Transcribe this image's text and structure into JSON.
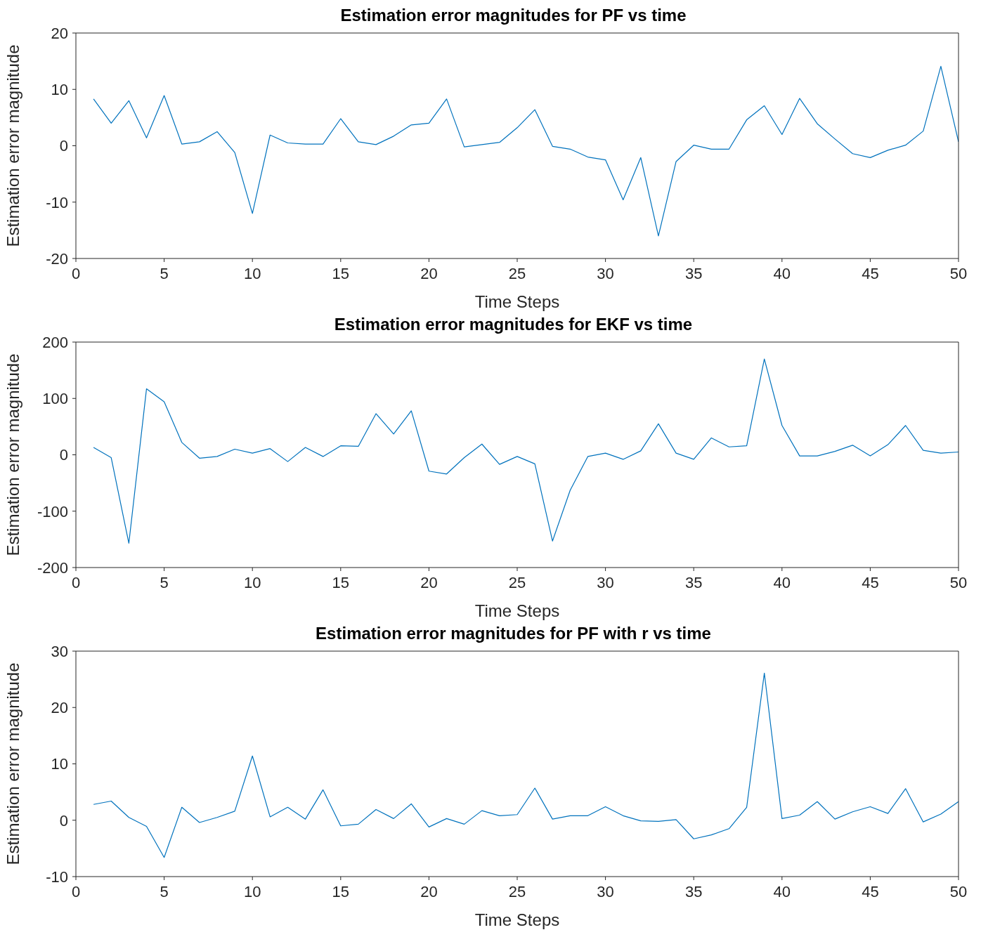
{
  "chart_data": [
    {
      "type": "line",
      "title": "Estimation error magnitudes for PF vs time",
      "xlabel": "Time Steps",
      "ylabel": "Estimation error magnitude",
      "x": [
        1,
        2,
        3,
        4,
        5,
        6,
        7,
        8,
        9,
        10,
        11,
        12,
        13,
        14,
        15,
        16,
        17,
        18,
        19,
        20,
        21,
        22,
        23,
        24,
        25,
        26,
        27,
        28,
        29,
        30,
        31,
        32,
        33,
        34,
        35,
        36,
        37,
        38,
        39,
        40,
        41,
        42,
        43,
        44,
        45,
        46,
        47,
        48,
        49,
        50
      ],
      "series": [
        {
          "color": "#0072bd",
          "values": [
            8.3,
            4.0,
            8.0,
            1.4,
            8.9,
            0.3,
            0.7,
            2.5,
            -1.2,
            -12.0,
            1.9,
            0.5,
            0.3,
            0.3,
            4.8,
            0.7,
            0.2,
            1.7,
            3.7,
            4.0,
            8.3,
            -0.2,
            0.2,
            0.6,
            3.2,
            6.4,
            -0.1,
            -0.6,
            -2.0,
            -2.5,
            -9.6,
            -2.1,
            -16.0,
            -2.8,
            0.1,
            -0.6,
            -0.6,
            4.6,
            7.1,
            2.0,
            8.4,
            3.9,
            1.2,
            -1.4,
            -2.1,
            -0.8,
            0.1,
            2.6,
            14.1,
            0.7
          ]
        }
      ],
      "xlim": [
        0,
        50
      ],
      "xticks": [
        0,
        5,
        10,
        15,
        20,
        25,
        30,
        35,
        40,
        45,
        50
      ],
      "ylim": [
        -20,
        20
      ],
      "yticks": [
        -20,
        -10,
        0,
        10,
        20
      ],
      "grid": false,
      "marker": "none",
      "line_style": "solid"
    },
    {
      "type": "line",
      "title": "Estimation error magnitudes for EKF vs time",
      "xlabel": "Time Steps",
      "ylabel": "Estimation error magnitude",
      "x": [
        1,
        2,
        3,
        4,
        5,
        6,
        7,
        8,
        9,
        10,
        11,
        12,
        13,
        14,
        15,
        16,
        17,
        18,
        19,
        20,
        21,
        22,
        23,
        24,
        25,
        26,
        27,
        28,
        29,
        30,
        31,
        32,
        33,
        34,
        35,
        36,
        37,
        38,
        39,
        40,
        41,
        42,
        43,
        44,
        45,
        46,
        47,
        48,
        49,
        50
      ],
      "series": [
        {
          "color": "#0072bd",
          "values": [
            13,
            -5,
            -157,
            117,
            94,
            22,
            -6,
            -3,
            10,
            3,
            11,
            -12,
            13,
            -3,
            16,
            15,
            73,
            37,
            78,
            -29,
            -34,
            -5,
            19,
            -17,
            -3,
            -16,
            -153,
            -63,
            -3,
            3,
            -8,
            7,
            55,
            3,
            -8,
            30,
            14,
            16,
            170,
            52,
            -2,
            -2,
            6,
            17,
            -2,
            18,
            52,
            8,
            3,
            5
          ]
        }
      ],
      "xlim": [
        0,
        50
      ],
      "xticks": [
        0,
        5,
        10,
        15,
        20,
        25,
        30,
        35,
        40,
        45,
        50
      ],
      "ylim": [
        -200,
        200
      ],
      "yticks": [
        -200,
        -100,
        0,
        100,
        200
      ],
      "grid": false,
      "marker": "none",
      "line_style": "solid"
    },
    {
      "type": "line",
      "title": "Estimation error magnitudes for PF with r vs time",
      "xlabel": "Time Steps",
      "ylabel": "Estimation error magnitude",
      "x": [
        1,
        2,
        3,
        4,
        5,
        6,
        7,
        8,
        9,
        10,
        11,
        12,
        13,
        14,
        15,
        16,
        17,
        18,
        19,
        20,
        21,
        22,
        23,
        24,
        25,
        26,
        27,
        28,
        29,
        30,
        31,
        32,
        33,
        34,
        35,
        36,
        37,
        38,
        39,
        40,
        41,
        42,
        43,
        44,
        45,
        46,
        47,
        48,
        49,
        50
      ],
      "series": [
        {
          "color": "#0072bd",
          "values": [
            2.8,
            3.4,
            0.5,
            -1.1,
            -6.6,
            2.3,
            -0.4,
            0.5,
            1.6,
            11.4,
            0.6,
            2.3,
            0.2,
            5.4,
            -1.0,
            -0.7,
            1.9,
            0.3,
            2.9,
            -1.2,
            0.3,
            -0.7,
            1.7,
            0.8,
            1.0,
            5.7,
            0.2,
            0.8,
            0.8,
            2.4,
            0.8,
            -0.1,
            -0.2,
            0.1,
            -3.3,
            -2.6,
            -1.5,
            2.3,
            26.1,
            0.3,
            0.9,
            3.3,
            0.2,
            1.5,
            2.4,
            1.2,
            5.6,
            -0.3,
            1.1,
            3.3
          ]
        }
      ],
      "xlim": [
        0,
        50
      ],
      "xticks": [
        0,
        5,
        10,
        15,
        20,
        25,
        30,
        35,
        40,
        45,
        50
      ],
      "ylim": [
        -10,
        30
      ],
      "yticks": [
        -10,
        0,
        10,
        20,
        30
      ],
      "grid": false,
      "marker": "none",
      "line_style": "solid"
    }
  ]
}
